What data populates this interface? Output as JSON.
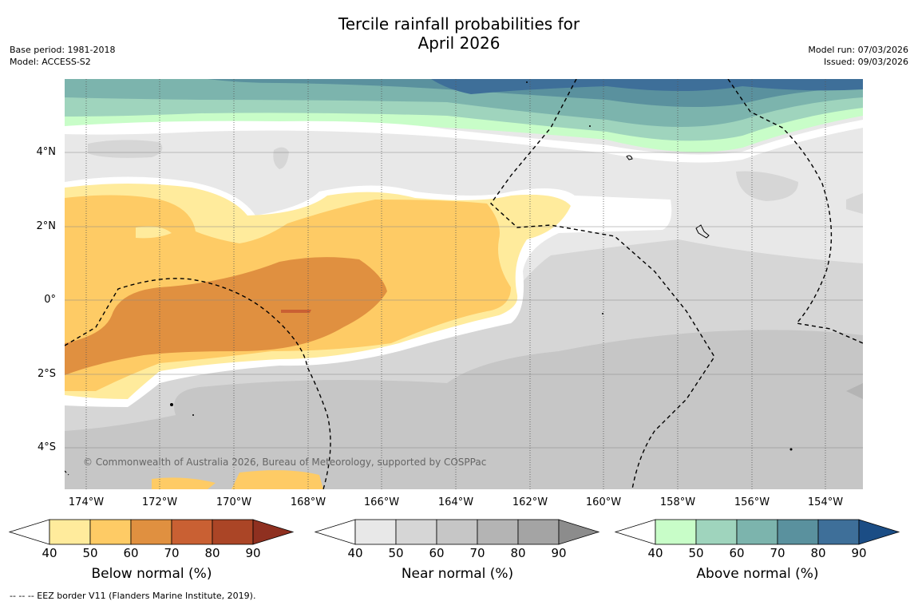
{
  "title": {
    "line1": "Tercile rainfall probabilities for",
    "line2": "April 2026"
  },
  "meta_left": {
    "base_period": "Base period: 1981-2018",
    "model": "Model: ACCESS-S2"
  },
  "meta_right": {
    "model_run": "Model run: 07/03/2026",
    "issued": "Issued: 09/03/2026"
  },
  "map": {
    "lat_labels": [
      "4°N",
      "2°N",
      "0°",
      "2°S",
      "4°S"
    ],
    "lon_labels": [
      "174°W",
      "172°W",
      "170°W",
      "168°W",
      "166°W",
      "164°W",
      "162°W",
      "160°W",
      "158°W",
      "156°W",
      "154°W"
    ],
    "copyright": "© Commonwealth of Australia 2026, Bureau of Meteorology, supported by COSPPac"
  },
  "legends": {
    "below": {
      "label": "Below normal (%)",
      "colors": [
        "#ffeb9c",
        "#fecb65",
        "#e09040",
        "#c96033",
        "#ab4526",
        "#8f3020"
      ]
    },
    "near": {
      "label": "Near normal (%)",
      "colors": [
        "#e8e8e8",
        "#d6d6d6",
        "#c6c6c6",
        "#b4b4b4",
        "#a4a4a4",
        "#8c8c8c"
      ]
    },
    "above": {
      "label": "Above normal (%)",
      "colors": [
        "#c8fdc8",
        "#9fd4bd",
        "#7cb4ad",
        "#5a919e",
        "#3e6f99",
        "#1b4d85"
      ]
    },
    "ticks": [
      "40",
      "50",
      "60",
      "70",
      "80",
      "90"
    ]
  },
  "footnote": "--  --  -- EEZ border V11 (Flanders Marine Institute, 2019)."
}
